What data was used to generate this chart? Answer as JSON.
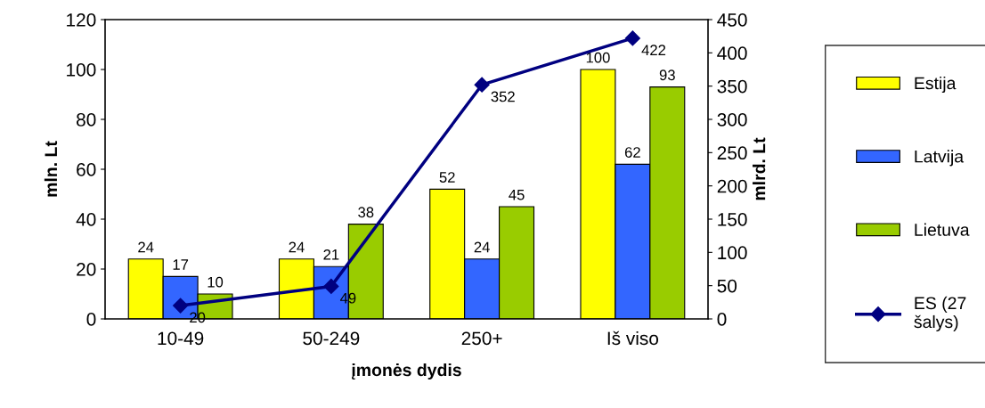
{
  "chart_data": {
    "type": "bar",
    "xlabel": "įmonės dydis",
    "ylabel": "mln. Lt",
    "y2label": "mlrd. Lt",
    "categories": [
      "10-49",
      "50-249",
      "250+",
      "Iš viso"
    ],
    "series": [
      {
        "name": "Estija",
        "color": "#ffff00",
        "values": [
          24,
          24,
          52,
          100
        ]
      },
      {
        "name": "Latvija",
        "color": "#3366ff",
        "values": [
          17,
          21,
          24,
          62
        ]
      },
      {
        "name": "Lietuva",
        "color": "#99cc00",
        "values": [
          10,
          38,
          45,
          93
        ]
      },
      {
        "name": "ES (27\nšalys)",
        "color": "#000080",
        "type": "line",
        "axis": "y2",
        "marker": "diamond",
        "line_style": "solid",
        "values": [
          20,
          49,
          352,
          422
        ]
      }
    ],
    "ylim": [
      0,
      120
    ],
    "yticks": [
      0,
      20,
      40,
      60,
      80,
      100,
      120
    ],
    "y2lim": [
      0,
      450
    ],
    "y2ticks": [
      0,
      50,
      100,
      150,
      200,
      250,
      300,
      350,
      400,
      450
    ],
    "data_labels": true,
    "grid": false,
    "legend": "right"
  }
}
